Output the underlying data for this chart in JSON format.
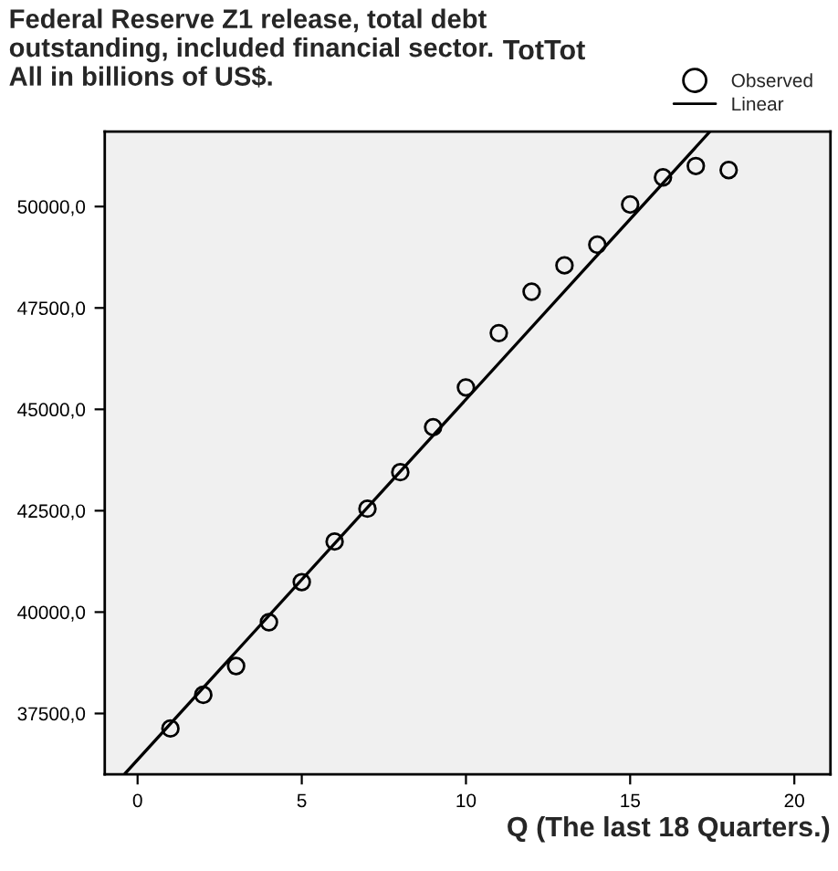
{
  "chart_data": {
    "type": "scatter",
    "title": "Federal Reserve Z1 release, total debt outstanding, included financial sector. All in billions of US$.",
    "subtitle": "TotTot",
    "xlabel": "Q (The last 18 Quarters.)",
    "series": [
      {
        "name": "Observed",
        "marker": "circle",
        "color": "#000000",
        "x": [
          1,
          2,
          3,
          4,
          5,
          6,
          7,
          8,
          9,
          10,
          11,
          12,
          13,
          14,
          15,
          16,
          17,
          18
        ],
        "values": [
          37130,
          37960,
          38670,
          39750,
          40740,
          41740,
          42550,
          43450,
          44560,
          45540,
          46880,
          47900,
          48550,
          49060,
          50050,
          50720,
          51000,
          50900
        ]
      },
      {
        "name": "Linear",
        "type": "line",
        "color": "#000000",
        "line_style": "solid",
        "x": [
          -0.38,
          17.42
        ],
        "values": [
          36020,
          51840
        ]
      }
    ],
    "xlim": [
      -1,
      21.1
    ],
    "ylim": [
      36000,
      51850
    ],
    "xticks": [
      0,
      5,
      10,
      15,
      20
    ],
    "yticks": [
      {
        "value": 37500,
        "label": "37500,0"
      },
      {
        "value": 40000,
        "label": "40000,0"
      },
      {
        "value": 42500,
        "label": "42500,0"
      },
      {
        "value": 45000,
        "label": "45000,0"
      },
      {
        "value": 47500,
        "label": "47500,0"
      },
      {
        "value": 50000,
        "label": "50000,0"
      }
    ],
    "grid": false,
    "legend": "top right"
  }
}
